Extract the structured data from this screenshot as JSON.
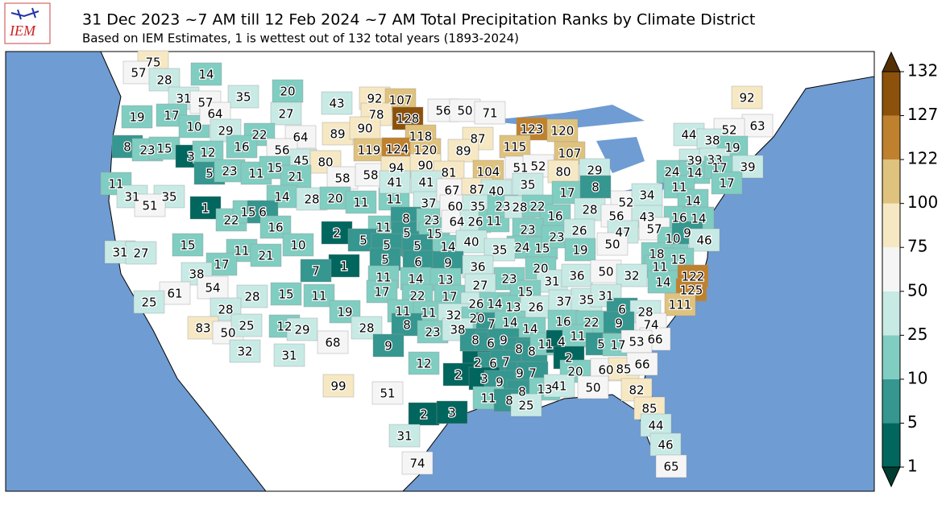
{
  "header": {
    "title": "31 Dec 2023 ~7 AM till 12 Feb 2024 ~7 AM Total Precipitation Ranks by Climate District",
    "subtitle": "Based on IEM Estimates, 1 is wettest out of 132 total years (1893-2024)",
    "logo": "IEM"
  },
  "colorbar": {
    "ticks": [
      1,
      5,
      10,
      25,
      50,
      75,
      100,
      122,
      127,
      132
    ],
    "colors": [
      "#01665e",
      "#35978f",
      "#80cdc1",
      "#c7eae5",
      "#f5f5f5",
      "#f6e8c3",
      "#dfc27d",
      "#bf812d",
      "#8c510a"
    ],
    "extend_colors": [
      "#003c30",
      "#543005"
    ]
  },
  "districts": {
    "ranks": [
      75,
      57,
      28,
      14,
      31,
      57,
      35,
      20,
      27,
      43,
      92,
      107,
      56,
      50,
      71,
      19,
      17,
      10,
      64,
      29,
      22,
      64,
      89,
      78,
      128,
      90,
      118,
      87,
      89,
      123,
      120,
      115,
      92,
      63,
      52,
      44,
      38,
      19,
      8,
      23,
      15,
      3,
      12,
      16,
      56,
      45,
      80,
      119,
      124,
      120,
      107,
      39,
      33,
      5,
      23,
      11,
      15,
      21,
      58,
      58,
      94,
      90,
      81,
      104,
      51,
      52,
      80,
      29,
      24,
      14,
      17,
      39,
      11,
      35,
      31,
      51,
      14,
      28,
      20,
      11,
      11,
      41,
      41,
      37,
      67,
      87,
      40,
      35,
      17,
      8,
      11,
      17,
      1,
      22,
      15,
      6,
      16,
      11,
      8,
      5,
      23,
      15,
      60,
      35,
      64,
      26,
      11,
      23,
      28,
      22,
      16,
      28,
      52,
      34,
      14,
      16,
      14,
      56,
      43,
      47,
      57,
      10,
      9,
      46,
      2,
      5,
      5,
      5,
      14,
      40,
      23,
      24,
      15,
      23,
      26,
      19,
      50,
      1,
      10,
      7,
      5,
      6,
      9,
      35,
      15,
      11,
      21,
      17,
      31,
      27,
      38,
      18,
      11,
      15,
      20,
      36,
      11,
      14,
      13,
      23,
      31,
      36,
      50,
      32,
      14,
      122,
      125,
      111,
      61,
      54,
      28,
      15,
      11,
      17,
      22,
      17,
      27,
      15,
      26,
      14,
      13,
      26,
      37,
      35,
      31,
      6,
      28,
      25,
      28,
      19,
      11,
      11,
      32,
      20,
      7,
      14,
      14,
      16,
      22,
      9,
      74,
      66,
      83,
      50,
      25,
      12,
      29,
      28,
      8,
      23,
      38,
      8,
      6,
      9,
      8,
      8,
      11,
      4,
      11,
      5,
      17,
      53,
      68,
      9,
      32,
      31,
      12,
      2,
      6,
      7,
      9,
      7,
      2,
      20,
      60,
      85,
      66,
      99,
      2,
      3,
      9,
      51,
      8,
      13,
      41,
      50,
      82,
      11,
      8,
      25,
      85,
      2,
      3,
      44,
      31,
      46,
      74,
      65
    ]
  }
}
